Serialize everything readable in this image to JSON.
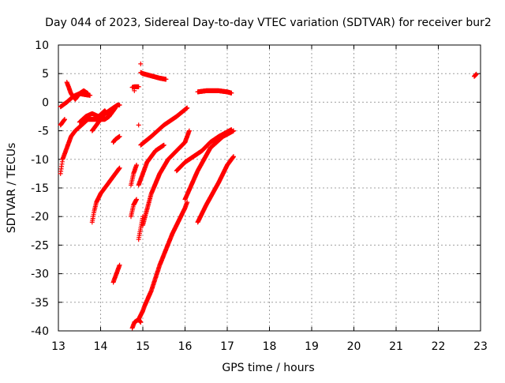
{
  "chart_data": {
    "type": "scatter",
    "title": "Day 044 of 2023, Sidereal Day-to-day VTEC variation (SDTVAR) for receiver bur2",
    "xlabel": "GPS time / hours",
    "ylabel": "SDTVAR / TECUs",
    "xlim": [
      13,
      23
    ],
    "ylim": [
      -40,
      10
    ],
    "xticks": [
      "13",
      "14",
      "15",
      "16",
      "17",
      "18",
      "19",
      "20",
      "21",
      "22",
      "23"
    ],
    "yticks": [
      "10",
      "5",
      "0",
      "-5",
      "-10",
      "-15",
      "-20",
      "-25",
      "-30",
      "-35",
      "-40"
    ],
    "grid": true,
    "legend": "none",
    "marker": "+",
    "color": "#ff0000",
    "series": [
      {
        "x": [
          13.05,
          13.2,
          13.35,
          13.5,
          13.65,
          13.75
        ],
        "y": [
          -0.8,
          0.0,
          1.0,
          1.5,
          1.3,
          1.2
        ]
      },
      {
        "x": [
          13.2,
          13.3,
          13.4,
          13.5,
          13.6,
          13.7
        ],
        "y": [
          3.5,
          1.5,
          0.5,
          1.5,
          2.0,
          1.5
        ]
      },
      {
        "x": [
          13.05,
          13.1,
          13.2,
          13.3,
          13.4,
          13.55,
          13.7,
          13.9,
          14.1,
          14.2,
          14.3,
          14.35
        ],
        "y": [
          -12.5,
          -10.0,
          -8.0,
          -6.0,
          -5.0,
          -4.0,
          -3.0,
          -3.0,
          -3.0,
          -2.5,
          -1.5,
          -1.0
        ]
      },
      {
        "x": [
          13.05,
          13.1,
          13.15
        ],
        "y": [
          -4.0,
          -3.5,
          -3.0
        ]
      },
      {
        "x": [
          13.5,
          13.65,
          13.8,
          13.95,
          14.1,
          14.2
        ],
        "y": [
          -3.5,
          -2.5,
          -2.0,
          -2.5,
          -1.5,
          -2.5
        ]
      },
      {
        "x": [
          13.8,
          13.9,
          14.0,
          14.1,
          14.2,
          14.3,
          14.4,
          14.45
        ],
        "y": [
          -5.0,
          -4.0,
          -3.0,
          -2.0,
          -1.5,
          -1.0,
          -0.5,
          -0.5
        ]
      },
      {
        "x": [
          13.8,
          13.85,
          13.9,
          14.0,
          14.1,
          14.2,
          14.3,
          14.4,
          14.45
        ],
        "y": [
          -21.0,
          -19.0,
          -17.5,
          -16.0,
          -15.0,
          -14.0,
          -13.0,
          -12.0,
          -11.5
        ]
      },
      {
        "x": [
          14.3,
          14.35,
          14.45
        ],
        "y": [
          -7.0,
          -6.5,
          -6.0
        ]
      },
      {
        "x": [
          14.3,
          14.35,
          14.4,
          14.45
        ],
        "y": [
          -31.5,
          -30.5,
          -29.5,
          -28.5
        ]
      },
      {
        "x": [
          14.75,
          14.8,
          14.85,
          14.9
        ],
        "y": [
          2.6,
          2.7,
          2.7,
          2.7
        ]
      },
      {
        "x": [
          14.72,
          14.78,
          14.85
        ],
        "y": [
          -14.5,
          -12.5,
          -11.0
        ]
      },
      {
        "x": [
          14.72,
          14.78,
          14.85
        ],
        "y": [
          -20.0,
          -18.0,
          -17.0
        ]
      },
      {
        "x": [
          14.75,
          14.8,
          14.9,
          14.95
        ],
        "y": [
          -39.5,
          -38.5,
          -38.0,
          -38.5
        ]
      },
      {
        "x": [
          14.9,
          14.95,
          15.0
        ],
        "y": [
          -24.0,
          -22.0,
          -20.0
        ]
      },
      {
        "x": [
          14.9,
          15.0,
          15.1,
          15.2,
          15.3,
          15.5
        ],
        "y": [
          -14.5,
          -12.5,
          -10.5,
          -9.5,
          -8.5,
          -7.5
        ]
      },
      {
        "x": [
          14.95,
          15.0,
          15.2,
          15.4,
          15.55
        ],
        "y": [
          5.2,
          5.0,
          4.6,
          4.2,
          4.0
        ]
      },
      {
        "x": [
          14.95,
          15.2,
          15.5,
          15.8,
          16.05
        ],
        "y": [
          -7.5,
          -6.0,
          -4.0,
          -2.5,
          -1.0
        ]
      },
      {
        "x": [
          14.9,
          15.0,
          15.05,
          15.2,
          15.4,
          15.7,
          16.0,
          16.05
        ],
        "y": [
          -38.0,
          -36.5,
          -35.5,
          -33.0,
          -28.5,
          -23.0,
          -18.5,
          -17.5
        ]
      },
      {
        "x": [
          15.0,
          15.2,
          15.4,
          15.6,
          15.8,
          16.0,
          16.1
        ],
        "y": [
          -21.5,
          -16.0,
          -12.5,
          -10.0,
          -8.5,
          -7.0,
          -5.0
        ]
      },
      {
        "x": [
          16.0,
          16.3,
          16.6,
          16.9,
          17.15
        ],
        "y": [
          -17.0,
          -12.0,
          -8.0,
          -6.0,
          -5.0
        ]
      },
      {
        "x": [
          15.8,
          16.0,
          16.2,
          16.4,
          16.6,
          16.8,
          17.0,
          17.1
        ],
        "y": [
          -12.0,
          -10.5,
          -9.5,
          -8.5,
          -7.0,
          -6.0,
          -5.2,
          -4.8
        ]
      },
      {
        "x": [
          16.3,
          16.5,
          16.8,
          17.0,
          17.15
        ],
        "y": [
          -21.0,
          -18.0,
          -14.0,
          -11.0,
          -9.5
        ]
      },
      {
        "x": [
          16.3,
          16.5,
          16.8,
          17.0,
          17.1
        ],
        "y": [
          1.8,
          2.0,
          2.0,
          1.8,
          1.6
        ]
      },
      {
        "x": [
          14.95
        ],
        "y": [
          6.7
        ]
      },
      {
        "x": [
          14.9
        ],
        "y": [
          -4.0
        ]
      },
      {
        "x": [
          14.8
        ],
        "y": [
          2.0
        ]
      },
      {
        "x": [
          22.85,
          22.9
        ],
        "y": [
          4.5,
          4.9
        ]
      }
    ]
  }
}
